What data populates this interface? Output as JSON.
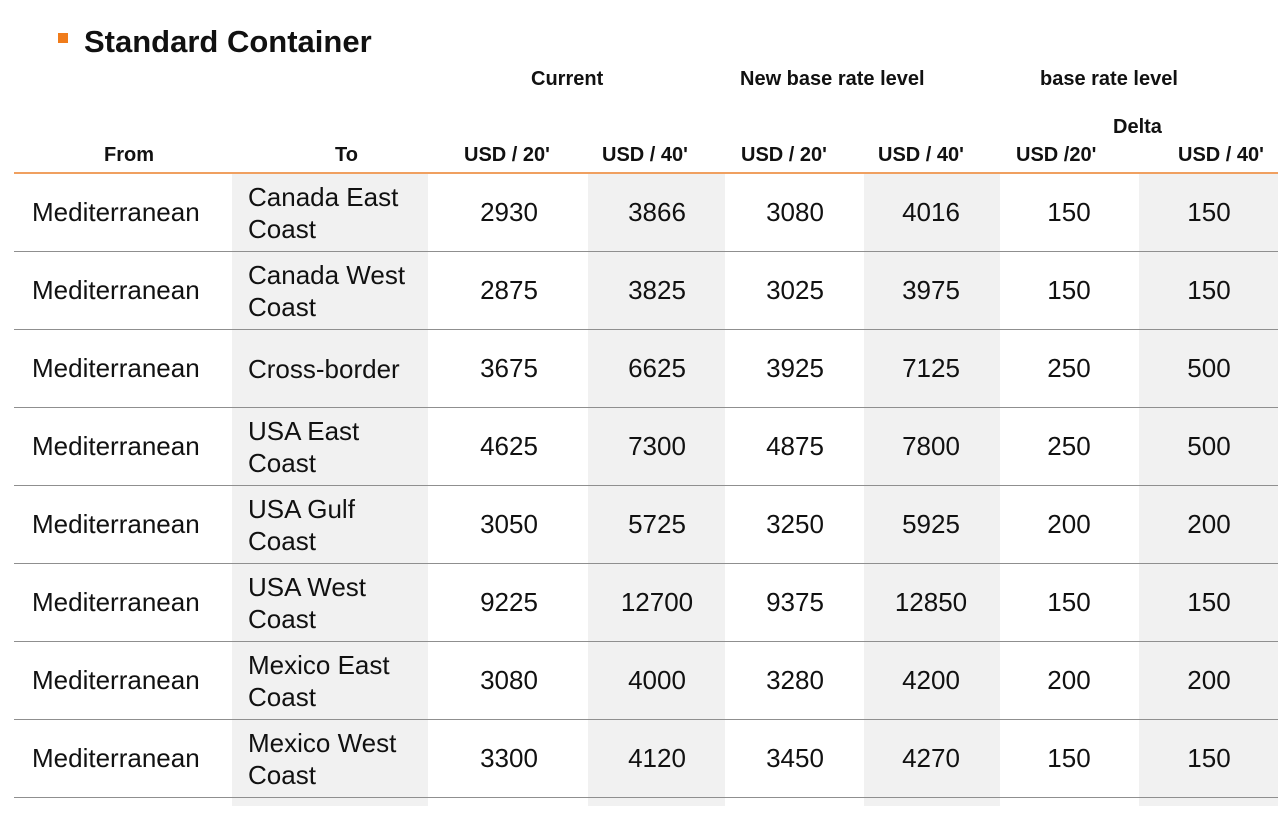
{
  "title": "Standard Container",
  "groups": {
    "current": "Current",
    "new_base": "New base rate level",
    "base": "base rate level",
    "delta": "Delta"
  },
  "columns": {
    "from": "From",
    "to": "To",
    "cur20": "USD / 20'",
    "cur40": "USD / 40'",
    "new20": "USD / 20'",
    "new40": "USD / 40'",
    "delta20": "USD /20'",
    "delta40": "USD / 40'"
  },
  "rows": [
    {
      "from": "Mediterranean",
      "to": "Canada East Coast",
      "cur20": "2930",
      "cur40": "3866",
      "new20": "3080",
      "new40": "4016",
      "delta20": "150",
      "delta40": "150"
    },
    {
      "from": "Mediterranean",
      "to": "Canada West Coast",
      "cur20": "2875",
      "cur40": "3825",
      "new20": "3025",
      "new40": "3975",
      "delta20": "150",
      "delta40": "150"
    },
    {
      "from": "Mediterranean",
      "to": "Cross-border",
      "cur20": "3675",
      "cur40": "6625",
      "new20": "3925",
      "new40": "7125",
      "delta20": "250",
      "delta40": "500"
    },
    {
      "from": "Mediterranean",
      "to": "USA East Coast",
      "cur20": "4625",
      "cur40": "7300",
      "new20": "4875",
      "new40": "7800",
      "delta20": "250",
      "delta40": "500"
    },
    {
      "from": "Mediterranean",
      "to": "USA Gulf Coast",
      "cur20": "3050",
      "cur40": "5725",
      "new20": "3250",
      "new40": "5925",
      "delta20": "200",
      "delta40": "200"
    },
    {
      "from": "Mediterranean",
      "to": "USA West Coast",
      "cur20": "9225",
      "cur40": "12700",
      "new20": "9375",
      "new40": "12850",
      "delta20": "150",
      "delta40": "150"
    },
    {
      "from": "Mediterranean",
      "to": "Mexico East Coast",
      "cur20": "3080",
      "cur40": "4000",
      "new20": "3280",
      "new40": "4200",
      "delta20": "200",
      "delta40": "200"
    },
    {
      "from": "Mediterranean",
      "to": "Mexico West Coast",
      "cur20": "3300",
      "cur40": "4120",
      "new20": "3450",
      "new40": "4270",
      "delta20": "150",
      "delta40": "150"
    }
  ],
  "colors": {
    "accent": "#f07c1b",
    "shade": "#f1f1f1",
    "rule": "#8f8f8f"
  }
}
